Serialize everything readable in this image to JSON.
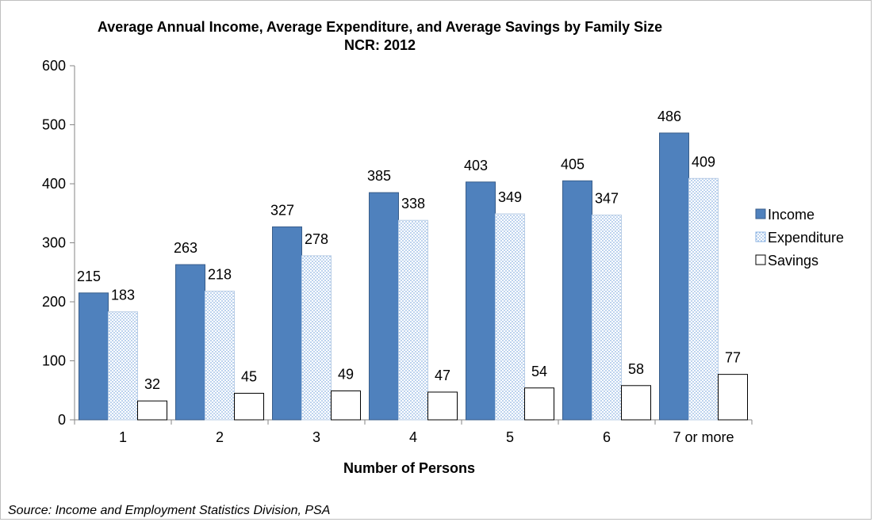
{
  "chart_data": {
    "type": "bar",
    "title": "Average Annual Income, Average Expenditure, and Average Savings by Family Size",
    "subtitle": "NCR: 2012",
    "xlabel": "Number of Persons",
    "ylabel": "",
    "ylim": [
      0,
      600
    ],
    "yticks": [
      0,
      100,
      200,
      300,
      400,
      500,
      600
    ],
    "grid": false,
    "legend_position": "right",
    "categories": [
      "1",
      "2",
      "3",
      "4",
      "5",
      "6",
      "7 or more"
    ],
    "series": [
      {
        "name": "Income",
        "values": [
          215,
          263,
          327,
          385,
          403,
          405,
          486
        ],
        "color": "#4f81bd",
        "fill": "solid"
      },
      {
        "name": "Expenditure",
        "values": [
          183,
          218,
          278,
          338,
          349,
          347,
          409
        ],
        "color": "#c5d9f1",
        "fill": "dotted"
      },
      {
        "name": "Savings",
        "values": [
          32,
          45,
          49,
          47,
          54,
          58,
          77
        ],
        "color": "#ffffff",
        "fill": "solid"
      }
    ],
    "source": "Source: Income and Employment Statistics Division, PSA"
  }
}
